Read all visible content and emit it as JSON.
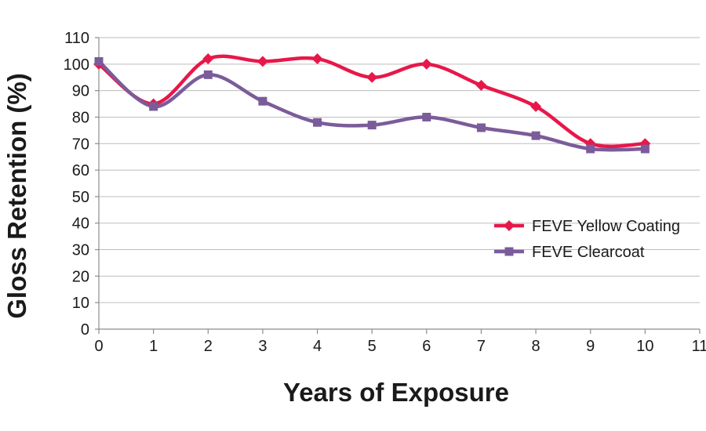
{
  "chart_data": {
    "type": "line",
    "smooth": true,
    "xlabel": "Years of Exposure",
    "ylabel": "Gloss Retention (%)",
    "xlim": [
      0,
      11
    ],
    "ylim": [
      0,
      110
    ],
    "x_ticks": [
      0,
      1,
      2,
      3,
      4,
      5,
      6,
      7,
      8,
      9,
      10,
      11
    ],
    "y_ticks": [
      0,
      10,
      20,
      30,
      40,
      50,
      60,
      70,
      80,
      90,
      100,
      110
    ],
    "grid": "horizontal",
    "legend_position": "right",
    "x": [
      0,
      1,
      2,
      3,
      4,
      5,
      6,
      7,
      8,
      9,
      10
    ],
    "series": [
      {
        "name": "FEVE Yellow Coating",
        "color": "#e8174a",
        "marker": "diamond",
        "values": [
          100,
          85,
          102,
          101,
          102,
          95,
          100,
          92,
          84,
          70,
          70
        ]
      },
      {
        "name": "FEVE Clearcoat",
        "color": "#7b5c9a",
        "marker": "square",
        "values": [
          101,
          84,
          96,
          86,
          78,
          77,
          80,
          76,
          73,
          68,
          68
        ]
      }
    ]
  }
}
